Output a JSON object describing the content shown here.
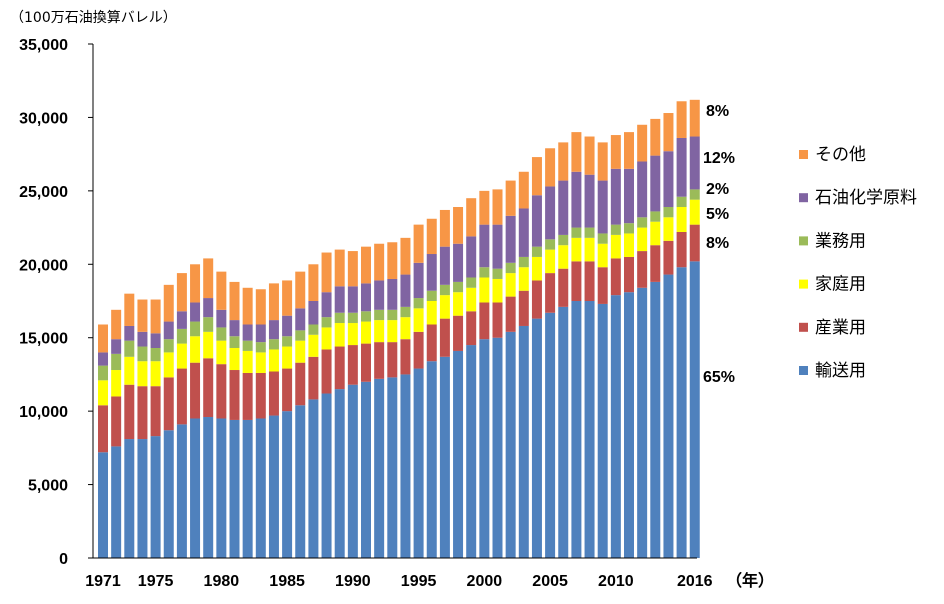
{
  "chart_data": {
    "type": "bar",
    "stacked": true,
    "y_unit_label": "（100万石油換算バレル）",
    "x_unit_label": "（年）",
    "ylim": [
      0,
      35000
    ],
    "y_ticks": [
      "0",
      "5,000",
      "10,000",
      "15,000",
      "20,000",
      "25,000",
      "30,000",
      "35,000"
    ],
    "x_tick_labels": [
      "1971",
      "1975",
      "1980",
      "1985",
      "1990",
      "1995",
      "2000",
      "2005",
      "2010",
      "2016"
    ],
    "x_tick_years": [
      1971,
      1975,
      1980,
      1985,
      1990,
      1995,
      2000,
      2005,
      2010,
      2016
    ],
    "categories": [
      1971,
      1972,
      1973,
      1974,
      1975,
      1976,
      1977,
      1978,
      1979,
      1980,
      1981,
      1982,
      1983,
      1984,
      1985,
      1986,
      1987,
      1988,
      1989,
      1990,
      1991,
      1992,
      1993,
      1994,
      1995,
      1996,
      1997,
      1998,
      1999,
      2000,
      2001,
      2002,
      2003,
      2004,
      2005,
      2006,
      2007,
      2008,
      2009,
      2010,
      2011,
      2012,
      2013,
      2014,
      2015,
      2016
    ],
    "series": [
      {
        "name": "輸送用",
        "color": "#4f81bd",
        "values": [
          7200,
          7600,
          8100,
          8100,
          8300,
          8700,
          9100,
          9500,
          9600,
          9500,
          9400,
          9400,
          9500,
          9700,
          10000,
          10400,
          10800,
          11200,
          11500,
          11800,
          12000,
          12200,
          12300,
          12500,
          12900,
          13400,
          13700,
          14100,
          14500,
          14900,
          15000,
          15400,
          15800,
          16300,
          16700,
          17100,
          17500,
          17500,
          17300,
          17900,
          18100,
          18400,
          18800,
          19300,
          19800,
          20200
        ]
      },
      {
        "name": "産業用",
        "color": "#c0504d",
        "values": [
          3200,
          3400,
          3700,
          3600,
          3400,
          3600,
          3800,
          3800,
          4000,
          3700,
          3400,
          3200,
          3100,
          3000,
          2900,
          2900,
          2900,
          3000,
          2900,
          2700,
          2600,
          2500,
          2400,
          2400,
          2500,
          2500,
          2600,
          2400,
          2300,
          2500,
          2400,
          2400,
          2400,
          2600,
          2700,
          2600,
          2700,
          2700,
          2500,
          2500,
          2400,
          2500,
          2500,
          2300,
          2400,
          2500
        ]
      },
      {
        "name": "家庭用",
        "color": "#ffff00",
        "values": [
          1700,
          1800,
          1900,
          1700,
          1700,
          1700,
          1700,
          1800,
          1800,
          1600,
          1500,
          1500,
          1400,
          1500,
          1500,
          1500,
          1500,
          1500,
          1600,
          1500,
          1500,
          1500,
          1500,
          1500,
          1600,
          1600,
          1600,
          1600,
          1600,
          1700,
          1600,
          1600,
          1600,
          1600,
          1600,
          1600,
          1600,
          1600,
          1600,
          1600,
          1600,
          1600,
          1600,
          1600,
          1700,
          1700
        ]
      },
      {
        "name": "業務用",
        "color": "#9bbb59",
        "values": [
          1000,
          1100,
          1100,
          1000,
          900,
          900,
          1000,
          1000,
          1000,
          900,
          800,
          700,
          700,
          700,
          700,
          700,
          700,
          700,
          700,
          700,
          700,
          700,
          700,
          700,
          700,
          700,
          700,
          700,
          700,
          700,
          700,
          700,
          700,
          700,
          700,
          700,
          700,
          700,
          700,
          700,
          700,
          700,
          700,
          700,
          700,
          700
        ]
      },
      {
        "name": "石油化学原料",
        "color": "#8064a2",
        "values": [
          900,
          1000,
          1000,
          1000,
          1000,
          1200,
          1200,
          1300,
          1300,
          1200,
          1100,
          1100,
          1200,
          1300,
          1400,
          1500,
          1600,
          1700,
          1800,
          1800,
          1900,
          2000,
          2100,
          2200,
          2400,
          2500,
          2600,
          2600,
          2800,
          2900,
          3000,
          3200,
          3300,
          3500,
          3600,
          3700,
          3800,
          3600,
          3600,
          3800,
          3700,
          3800,
          3800,
          3800,
          4000,
          3600
        ]
      },
      {
        "name": "その他",
        "color": "#f79646",
        "values": [
          1900,
          2000,
          2200,
          2200,
          2300,
          2500,
          2600,
          2600,
          2700,
          2600,
          2600,
          2500,
          2400,
          2500,
          2400,
          2500,
          2500,
          2700,
          2500,
          2400,
          2500,
          2500,
          2500,
          2500,
          2600,
          2400,
          2500,
          2500,
          2600,
          2300,
          2400,
          2400,
          2500,
          2600,
          2600,
          2600,
          2700,
          2600,
          2600,
          2300,
          2500,
          2500,
          2500,
          2600,
          2500,
          2500
        ]
      }
    ],
    "legend": {
      "placement": "right",
      "entries": [
        "その他",
        "石油化学原料",
        "業務用",
        "家庭用",
        "産業用",
        "輸送用"
      ]
    },
    "share_labels": [
      {
        "series": "その他",
        "text": "8%"
      },
      {
        "series": "石油化学原料",
        "text": "12%"
      },
      {
        "series": "業務用",
        "text": "2%"
      },
      {
        "series": "家庭用",
        "text": "5%"
      },
      {
        "series": "産業用",
        "text": "8%"
      },
      {
        "series": "輸送用",
        "text": "65%"
      }
    ],
    "grid": false
  }
}
